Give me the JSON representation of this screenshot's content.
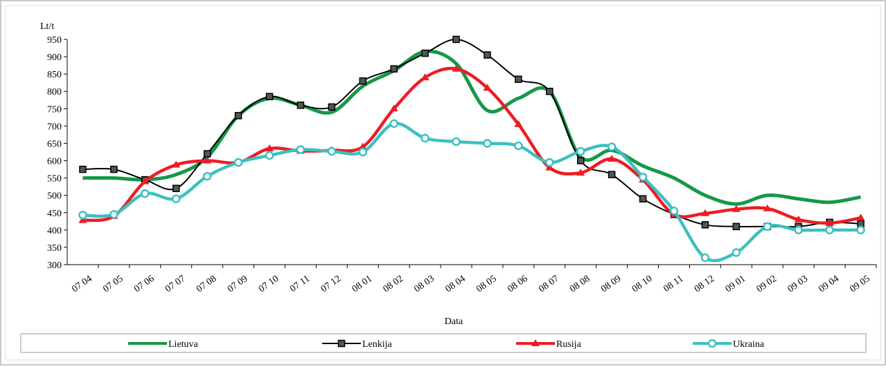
{
  "chart_data": {
    "type": "line",
    "y_label": "Lt/t",
    "x_label": "Data",
    "categories": [
      "07 04",
      "07 05",
      "07 06",
      "07 07",
      "07 08",
      "07 09",
      "07 10",
      "07 11",
      "07 12",
      "08 01",
      "08 02",
      "08 03",
      "08 04",
      "08 05",
      "08 06",
      "08 07",
      "08 08",
      "08 09",
      "08 10",
      "08 11",
      "08 12",
      "09 01",
      "09 02",
      "09 03",
      "09 04",
      "09 05"
    ],
    "series": [
      {
        "name": "Lietuva",
        "color": "#159848",
        "marker": "none",
        "values": [
          550,
          550,
          545,
          560,
          610,
          730,
          780,
          760,
          740,
          815,
          860,
          915,
          880,
          745,
          780,
          800,
          610,
          630,
          585,
          550,
          500,
          475,
          500,
          490,
          480,
          495
        ]
      },
      {
        "name": "Lenkija",
        "color": "#000000",
        "marker": "square",
        "values": [
          575,
          575,
          545,
          520,
          620,
          730,
          785,
          760,
          755,
          830,
          865,
          910,
          950,
          905,
          835,
          800,
          600,
          560,
          490,
          445,
          415,
          410,
          410,
          410,
          422,
          418
        ]
      },
      {
        "name": "Rusija",
        "color": "#ed1c24",
        "marker": "triangle",
        "values": [
          428,
          440,
          540,
          588,
          600,
          595,
          635,
          628,
          630,
          640,
          750,
          840,
          865,
          810,
          705,
          580,
          565,
          605,
          545,
          445,
          448,
          460,
          462,
          430,
          420,
          435
        ]
      },
      {
        "name": "Ukraina",
        "color": "#3cc0c0",
        "marker": "circle",
        "values": [
          443,
          445,
          505,
          490,
          555,
          595,
          615,
          632,
          627,
          625,
          707,
          665,
          655,
          650,
          643,
          595,
          627,
          640,
          553,
          455,
          320,
          335,
          410,
          400,
          400,
          400
        ]
      }
    ],
    "ylim": [
      300,
      950
    ],
    "yticks": [
      300,
      350,
      400,
      450,
      500,
      550,
      600,
      650,
      700,
      750,
      800,
      850,
      900,
      950
    ],
    "grid": false,
    "legend": "bottom"
  }
}
